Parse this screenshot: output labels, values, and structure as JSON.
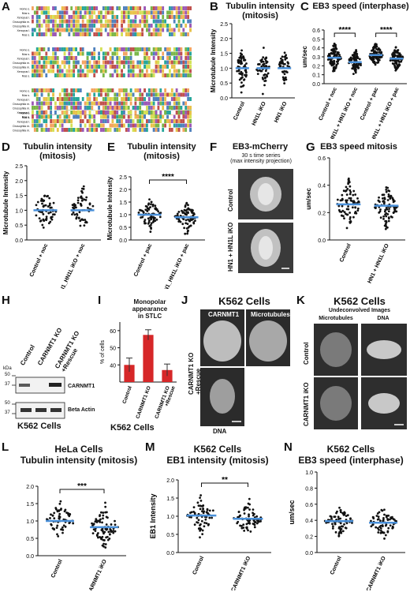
{
  "labels": {
    "A": "A",
    "B": "B",
    "C": "C",
    "D": "D",
    "E": "E",
    "F": "F",
    "G": "G",
    "H": "H",
    "I": "I",
    "J": "J",
    "K": "K",
    "L": "L",
    "M": "M",
    "N": "N"
  },
  "colors": {
    "mean_line": "#4a90d9",
    "dot": "#111111",
    "bar": "#d62728",
    "image_bg": "#3a3a3a"
  },
  "alignment": {
    "species": [
      "Homo s.",
      "Mus s.",
      "Xenopus l.",
      "Jupiter Drosophila m.",
      "JPT1 Drosophila m.",
      "Xenopus l.",
      "Mus s."
    ]
  },
  "panelB": {
    "title": "Tubulin intensity\n(mitosis)"
  },
  "panelC": {
    "title": "EB3 speed (interphase)"
  },
  "panelD": {
    "title": "Tubulin intensity\n(mitosis)"
  },
  "panelE": {
    "title": "Tubulin intensity\n(mitosis)"
  },
  "panelF": {
    "title": "EB3-mCherry",
    "subtitle": "30 s time series\n(max intensity projection)",
    "row1": "Control",
    "row2": "HN1 + HN1L iKO"
  },
  "panelG": {
    "title": "EB3 speed mitosis"
  },
  "panelH": {
    "kda": "kDa",
    "markers": [
      "50",
      "37",
      "50",
      "37"
    ],
    "lanes": [
      "Control",
      "CARNMT1 KO",
      "CARNMT1 KO\n+Rescue"
    ],
    "band1": "CARNMT1",
    "band2": "Beta Actin",
    "caption": "K562 Cells"
  },
  "panelI": {
    "title": "Monopolar\nappearance\nin STLC",
    "caption": "K562 Cells"
  },
  "panelJ": {
    "title": "K562 Cells",
    "img1": "CARNMT1",
    "img2": "Microtubules",
    "img3": "DNA",
    "side": "CARNMT1 KO\n+Rescue"
  },
  "panelK": {
    "title": "K562 Cells",
    "subtitle": "Undeconvolved Images",
    "col1": "Microtubules",
    "col2": "DNA",
    "row1": "Control",
    "row2": "CARNMT1 iKO"
  },
  "panelL": {
    "title": "HeLa Cells\nTubulin intensity (mitosis)"
  },
  "panelM": {
    "title": "K562 Cells\nEB1 intensity (mitosis)"
  },
  "panelN": {
    "title": "K562 Cells\nEB3 speed (interphase)"
  },
  "chart_data": [
    {
      "id": "B",
      "type": "scatter",
      "ylabel": "Microtubule Intensity",
      "ylim": [
        0,
        2.5
      ],
      "yticks": [
        "0.0",
        "0.5",
        "1.0",
        "1.5",
        "2.0",
        "2.5"
      ],
      "categories": [
        "Control",
        "HN1L iKO",
        "HN1 iKO"
      ],
      "means": [
        1.0,
        1.0,
        1.0
      ],
      "n": [
        60,
        50,
        45
      ],
      "spread": [
        0.3,
        0.3,
        0.3
      ],
      "significance": []
    },
    {
      "id": "C",
      "type": "scatter",
      "ylabel": "um/sec",
      "ylim": [
        0,
        0.6
      ],
      "yticks": [
        "0.0",
        "0.1",
        "0.2",
        "0.3",
        "0.4",
        "0.5",
        "0.6"
      ],
      "categories": [
        "Control + noc",
        "HN1L + HN1 iKO + noc",
        "Control + pac",
        "HN1L + HN1 iKO + pac"
      ],
      "means": [
        0.29,
        0.24,
        0.32,
        0.28
      ],
      "n": [
        90,
        90,
        90,
        90
      ],
      "spread": [
        0.07,
        0.06,
        0.06,
        0.06
      ],
      "significance": [
        {
          "from": 0,
          "to": 1,
          "label": "****"
        },
        {
          "from": 2,
          "to": 3,
          "label": "****"
        }
      ]
    },
    {
      "id": "D",
      "type": "scatter",
      "ylabel": "Microtubule Intensity",
      "ylim": [
        0,
        2.5
      ],
      "yticks": [
        "0.0",
        "0.5",
        "1.0",
        "1.5",
        "2.0",
        "2.5"
      ],
      "categories": [
        "Control + noc",
        "HN1_HN1L iKO + noc"
      ],
      "means": [
        1.0,
        1.0
      ],
      "n": [
        60,
        60
      ],
      "spread": [
        0.3,
        0.3
      ],
      "significance": []
    },
    {
      "id": "E",
      "type": "scatter",
      "ylabel": "Microtubule Intensity",
      "ylim": [
        0,
        2.5
      ],
      "yticks": [
        "0.0",
        "0.5",
        "1.0",
        "1.5",
        "2.0",
        "2.5"
      ],
      "categories": [
        "Control + pac",
        "HN1_HN1L iKO + pac"
      ],
      "means": [
        1.0,
        0.9
      ],
      "n": [
        70,
        80
      ],
      "spread": [
        0.3,
        0.25
      ],
      "significance": [
        {
          "from": 0,
          "to": 1,
          "label": "****"
        }
      ]
    },
    {
      "id": "G",
      "type": "scatter",
      "ylabel": "um/sec",
      "ylim": [
        0,
        0.6
      ],
      "yticks": [
        "0.0",
        "0.2",
        "0.4",
        "0.6"
      ],
      "categories": [
        "Control",
        "HN1 + HN1L iKO"
      ],
      "means": [
        0.26,
        0.25
      ],
      "n": [
        80,
        90
      ],
      "spread": [
        0.08,
        0.07
      ],
      "significance": []
    },
    {
      "id": "I",
      "type": "bar",
      "ylabel": "% of cells",
      "ylim": [
        30,
        65
      ],
      "yticks": [
        "40",
        "50",
        "60"
      ],
      "categories": [
        "Control",
        "CARNMT1 KO",
        "CARNMT1 KO\n+Rescue"
      ],
      "values": [
        40,
        57.5,
        37
      ],
      "errors": [
        4,
        3,
        3.5
      ]
    },
    {
      "id": "L",
      "type": "scatter",
      "ylabel": "",
      "ylim": [
        0,
        2.0
      ],
      "yticks": [
        "0.0",
        "0.5",
        "1.0",
        "1.5",
        "2.0"
      ],
      "categories": [
        "Control",
        "CARNMT1 iKO"
      ],
      "means": [
        1.0,
        0.82
      ],
      "n": [
        60,
        80
      ],
      "spread": [
        0.25,
        0.25
      ],
      "significance": [
        {
          "from": 0,
          "to": 1,
          "label": "***"
        }
      ]
    },
    {
      "id": "M",
      "type": "scatter",
      "ylabel": "EB1 Intensity",
      "ylim": [
        0,
        2.0
      ],
      "yticks": [
        "0.0",
        "0.5",
        "1.0",
        "1.5",
        "2.0"
      ],
      "categories": [
        "Control",
        "CARNMT1 iKO"
      ],
      "means": [
        1.02,
        0.93
      ],
      "n": [
        70,
        70
      ],
      "spread": [
        0.22,
        0.2
      ],
      "significance": [
        {
          "from": 0,
          "to": 1,
          "label": "**"
        }
      ]
    },
    {
      "id": "N",
      "type": "scatter",
      "ylabel": "um/sec",
      "ylim": [
        0,
        1.0
      ],
      "yticks": [
        "0.0",
        "0.2",
        "0.4",
        "0.6",
        "0.8",
        "1.0"
      ],
      "categories": [
        "Control",
        "CARNMT1 iKO"
      ],
      "means": [
        0.39,
        0.37
      ],
      "n": [
        70,
        70
      ],
      "spread": [
        0.08,
        0.09
      ],
      "significance": []
    }
  ]
}
